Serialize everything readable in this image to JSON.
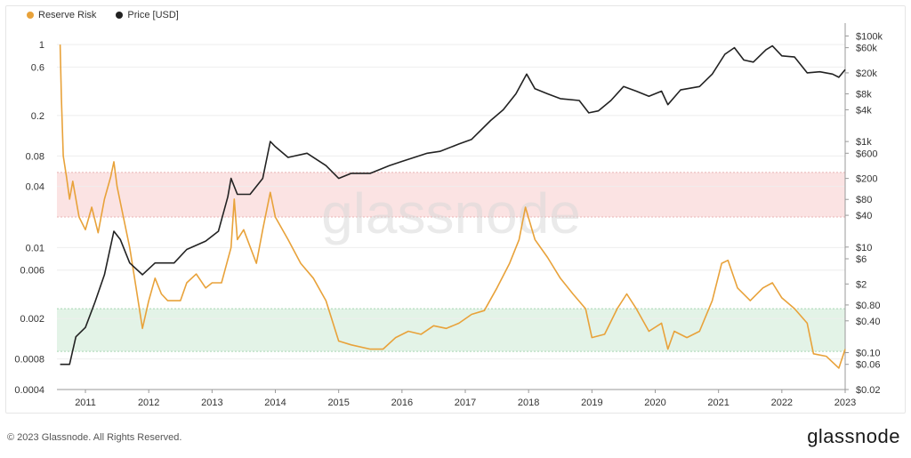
{
  "brand": {
    "footer_copyright": "© 2023 Glassnode. All Rights Reserved.",
    "footer_logo": "glassnode",
    "watermark": "glassnode"
  },
  "colors": {
    "reserve_risk": "#e8a23a",
    "price": "#222222",
    "red_band": "#fbe3e3",
    "green_band": "#e3f3e7",
    "grid": "#eeeeee"
  },
  "legend": [
    {
      "label": "Reserve Risk",
      "color": "#e8a23a"
    },
    {
      "label": "Price [USD]",
      "color": "#222222"
    }
  ],
  "chart_data": {
    "type": "line",
    "x_ticks": [
      "2011",
      "2012",
      "2013",
      "2014",
      "2015",
      "2016",
      "2017",
      "2018",
      "2019",
      "2020",
      "2021",
      "2022",
      "2023"
    ],
    "y_left": {
      "scale": "log",
      "range": [
        0.0004,
        1.5
      ],
      "ticks": [
        1,
        0.6,
        0.2,
        0.08,
        0.04,
        0.01,
        0.006,
        0.002,
        0.0008,
        0.0004
      ],
      "tick_labels": [
        "1",
        "0.6",
        "0.2",
        "0.08",
        "0.04",
        "0.01",
        "0.006",
        "0.002",
        "0.0008",
        "0.0004"
      ]
    },
    "y_right": {
      "scale": "log",
      "range": [
        0.02,
        150000
      ],
      "ticks": [
        100000,
        60000,
        20000,
        8000,
        4000,
        1000,
        600,
        200,
        80,
        40,
        10,
        6,
        2,
        0.8,
        0.4,
        0.1,
        0.06,
        0.02
      ],
      "tick_labels": [
        "$100k",
        "$60k",
        "$20k",
        "$8k",
        "$4k",
        "$1k",
        "$600",
        "$200",
        "$80",
        "$40",
        "$10",
        "$6",
        "$2",
        "$0.80",
        "$0.40",
        "$0.10",
        "$0.06",
        "$0.02"
      ]
    },
    "bands": [
      {
        "name": "high-risk",
        "from": 0.02,
        "to": 0.055
      },
      {
        "name": "low-risk",
        "from": 0.00095,
        "to": 0.0025
      }
    ],
    "series": [
      {
        "name": "Reserve Risk",
        "axis": "left",
        "points": [
          [
            2010.6,
            1.0
          ],
          [
            2010.62,
            0.3
          ],
          [
            2010.65,
            0.08
          ],
          [
            2010.7,
            0.05
          ],
          [
            2010.75,
            0.03
          ],
          [
            2010.8,
            0.045
          ],
          [
            2010.9,
            0.02
          ],
          [
            2011.0,
            0.015
          ],
          [
            2011.1,
            0.025
          ],
          [
            2011.2,
            0.014
          ],
          [
            2011.3,
            0.03
          ],
          [
            2011.4,
            0.05
          ],
          [
            2011.45,
            0.07
          ],
          [
            2011.5,
            0.04
          ],
          [
            2011.6,
            0.02
          ],
          [
            2011.7,
            0.01
          ],
          [
            2011.8,
            0.004
          ],
          [
            2011.9,
            0.0016
          ],
          [
            2012.0,
            0.003
          ],
          [
            2012.1,
            0.005
          ],
          [
            2012.2,
            0.0035
          ],
          [
            2012.3,
            0.003
          ],
          [
            2012.5,
            0.003
          ],
          [
            2012.6,
            0.0045
          ],
          [
            2012.75,
            0.0055
          ],
          [
            2012.9,
            0.004
          ],
          [
            2013.0,
            0.0045
          ],
          [
            2013.15,
            0.0045
          ],
          [
            2013.3,
            0.01
          ],
          [
            2013.35,
            0.03
          ],
          [
            2013.4,
            0.012
          ],
          [
            2013.5,
            0.015
          ],
          [
            2013.7,
            0.007
          ],
          [
            2013.8,
            0.015
          ],
          [
            2013.92,
            0.035
          ],
          [
            2014.0,
            0.02
          ],
          [
            2014.2,
            0.012
          ],
          [
            2014.4,
            0.007
          ],
          [
            2014.6,
            0.005
          ],
          [
            2014.8,
            0.003
          ],
          [
            2015.0,
            0.0012
          ],
          [
            2015.2,
            0.0011
          ],
          [
            2015.5,
            0.001
          ],
          [
            2015.7,
            0.001
          ],
          [
            2015.9,
            0.0013
          ],
          [
            2016.1,
            0.0015
          ],
          [
            2016.3,
            0.0014
          ],
          [
            2016.5,
            0.0017
          ],
          [
            2016.7,
            0.0016
          ],
          [
            2016.9,
            0.0018
          ],
          [
            2017.1,
            0.0022
          ],
          [
            2017.3,
            0.0024
          ],
          [
            2017.5,
            0.004
          ],
          [
            2017.7,
            0.007
          ],
          [
            2017.85,
            0.012
          ],
          [
            2017.95,
            0.025
          ],
          [
            2018.1,
            0.012
          ],
          [
            2018.3,
            0.008
          ],
          [
            2018.5,
            0.005
          ],
          [
            2018.7,
            0.0035
          ],
          [
            2018.9,
            0.0025
          ],
          [
            2019.0,
            0.0013
          ],
          [
            2019.2,
            0.0014
          ],
          [
            2019.4,
            0.0025
          ],
          [
            2019.55,
            0.0035
          ],
          [
            2019.7,
            0.0025
          ],
          [
            2019.9,
            0.0015
          ],
          [
            2020.1,
            0.0018
          ],
          [
            2020.2,
            0.001
          ],
          [
            2020.3,
            0.0015
          ],
          [
            2020.5,
            0.0013
          ],
          [
            2020.7,
            0.0015
          ],
          [
            2020.9,
            0.003
          ],
          [
            2021.05,
            0.007
          ],
          [
            2021.15,
            0.0075
          ],
          [
            2021.3,
            0.004
          ],
          [
            2021.5,
            0.003
          ],
          [
            2021.7,
            0.004
          ],
          [
            2021.85,
            0.0045
          ],
          [
            2022.0,
            0.0032
          ],
          [
            2022.2,
            0.0025
          ],
          [
            2022.4,
            0.0018
          ],
          [
            2022.5,
            0.0009
          ],
          [
            2022.7,
            0.00085
          ],
          [
            2022.9,
            0.00065
          ],
          [
            2023.0,
            0.001
          ]
        ]
      },
      {
        "name": "Price [USD]",
        "axis": "right",
        "points": [
          [
            2010.6,
            0.06
          ],
          [
            2010.75,
            0.06
          ],
          [
            2010.85,
            0.2
          ],
          [
            2011.0,
            0.3
          ],
          [
            2011.15,
            0.9
          ],
          [
            2011.3,
            3
          ],
          [
            2011.45,
            20
          ],
          [
            2011.55,
            14
          ],
          [
            2011.7,
            5
          ],
          [
            2011.9,
            3
          ],
          [
            2012.1,
            5
          ],
          [
            2012.4,
            5
          ],
          [
            2012.6,
            9
          ],
          [
            2012.9,
            13
          ],
          [
            2013.1,
            20
          ],
          [
            2013.25,
            90
          ],
          [
            2013.3,
            200
          ],
          [
            2013.4,
            100
          ],
          [
            2013.6,
            100
          ],
          [
            2013.8,
            200
          ],
          [
            2013.92,
            1000
          ],
          [
            2014.0,
            800
          ],
          [
            2014.2,
            500
          ],
          [
            2014.5,
            600
          ],
          [
            2014.8,
            350
          ],
          [
            2015.0,
            200
          ],
          [
            2015.2,
            250
          ],
          [
            2015.5,
            250
          ],
          [
            2015.8,
            350
          ],
          [
            2016.0,
            420
          ],
          [
            2016.4,
            600
          ],
          [
            2016.6,
            650
          ],
          [
            2016.9,
            900
          ],
          [
            2017.1,
            1100
          ],
          [
            2017.4,
            2500
          ],
          [
            2017.6,
            4000
          ],
          [
            2017.8,
            8000
          ],
          [
            2017.97,
            19000
          ],
          [
            2018.1,
            10000
          ],
          [
            2018.3,
            8000
          ],
          [
            2018.5,
            6500
          ],
          [
            2018.8,
            6000
          ],
          [
            2018.95,
            3500
          ],
          [
            2019.1,
            3800
          ],
          [
            2019.3,
            6000
          ],
          [
            2019.5,
            11000
          ],
          [
            2019.7,
            9000
          ],
          [
            2019.9,
            7200
          ],
          [
            2020.1,
            9000
          ],
          [
            2020.2,
            5000
          ],
          [
            2020.4,
            9500
          ],
          [
            2020.7,
            11000
          ],
          [
            2020.9,
            19000
          ],
          [
            2021.1,
            45000
          ],
          [
            2021.25,
            60000
          ],
          [
            2021.4,
            35000
          ],
          [
            2021.55,
            32000
          ],
          [
            2021.75,
            55000
          ],
          [
            2021.85,
            65000
          ],
          [
            2022.0,
            42000
          ],
          [
            2022.2,
            40000
          ],
          [
            2022.4,
            20000
          ],
          [
            2022.6,
            21000
          ],
          [
            2022.8,
            19000
          ],
          [
            2022.9,
            16500
          ],
          [
            2023.0,
            23000
          ]
        ]
      }
    ]
  }
}
